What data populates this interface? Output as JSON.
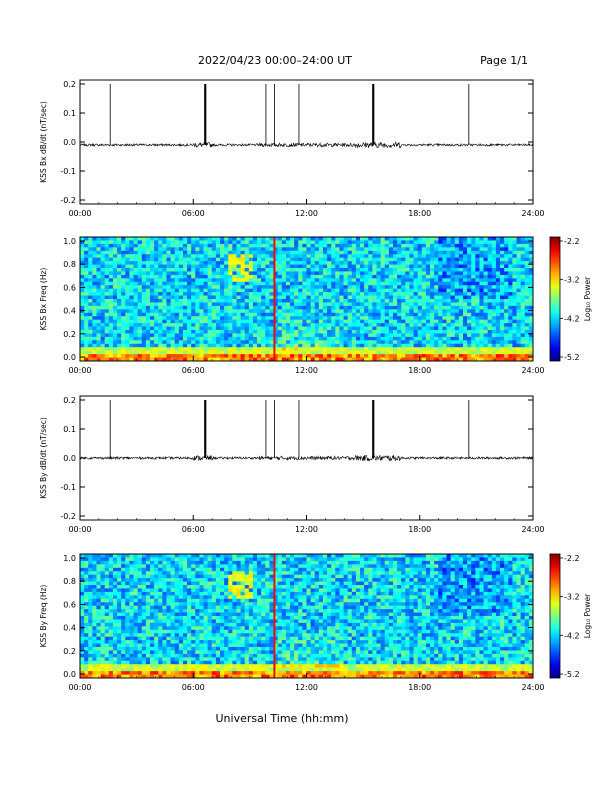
{
  "header": {
    "title": "2022/04/23  00:00–24:00 UT",
    "page": "Page 1/1"
  },
  "xaxis": {
    "label": "Universal Time (hh:mm)",
    "ticks": [
      "00:00",
      "06:00",
      "12:00",
      "18:00",
      "24:00"
    ],
    "range_hours": [
      0,
      24
    ]
  },
  "chart_data": [
    {
      "type": "line",
      "ylabel": "KSS Bx dB/dt (nT/sec)",
      "ylim": [
        -0.2,
        0.2
      ],
      "yticks": [
        "0.2",
        "0.1",
        "0.0",
        "-0.1",
        "-0.2"
      ],
      "baseline": -0.01,
      "noise_level": 0.004,
      "spikes_hours": [
        1.6,
        6.6,
        6.65,
        9.85,
        10.3,
        11.6,
        15.5,
        15.55,
        20.6
      ],
      "spike_top": 0.2
    },
    {
      "type": "heatmap",
      "ylabel": "KSS Bx Freq (Hz)",
      "ylim": [
        0,
        1.0
      ],
      "yticks": [
        "1.0",
        "0.8",
        "0.6",
        "0.4",
        "0.2",
        "0.0"
      ],
      "marker_hour": 10.3,
      "marker_color": "#ff0000",
      "colorbar": {
        "label": "Log₁₀ Power",
        "ticks": [
          "-2.2",
          "-3.2",
          "-4.2",
          "-5.2"
        ],
        "range": [
          -5.2,
          -2.2
        ]
      }
    },
    {
      "type": "line",
      "ylabel": "KSS By dB/dt (nT/sec)",
      "ylim": [
        -0.2,
        0.2
      ],
      "yticks": [
        "0.2",
        "0.1",
        "0.0",
        "-0.1",
        "-0.2"
      ],
      "baseline": 0.0,
      "noise_level": 0.004,
      "spikes_hours": [
        1.6,
        6.6,
        6.65,
        9.85,
        10.3,
        11.6,
        15.5,
        15.55,
        20.6
      ],
      "spike_top": 0.2
    },
    {
      "type": "heatmap",
      "ylabel": "KSS By Freq (Hz)",
      "ylim": [
        0,
        1.0
      ],
      "yticks": [
        "1.0",
        "0.8",
        "0.6",
        "0.4",
        "0.2",
        "0.0"
      ],
      "marker_hour": 10.3,
      "marker_color": "#ff0000",
      "colorbar": {
        "label": "Log₁₀ Power",
        "ticks": [
          "-2.2",
          "-3.2",
          "-4.2",
          "-5.2"
        ],
        "range": [
          -5.2,
          -2.2
        ]
      }
    }
  ]
}
